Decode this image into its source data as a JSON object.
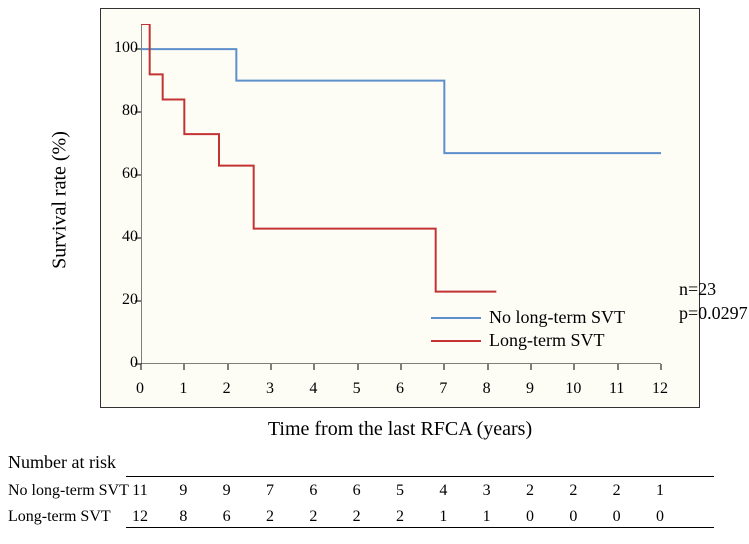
{
  "chart": {
    "type": "kaplan-meier",
    "background_color": "#fdfdf6",
    "border_color": "#333333",
    "xlabel": "Time from the last RFCA (years)",
    "ylabel": "Survival rate (%)",
    "label_fontsize": 20,
    "tick_fontsize": 16,
    "xlim": [
      0,
      12
    ],
    "ylim": [
      0,
      108
    ],
    "xticks": [
      0,
      1,
      2,
      3,
      4,
      5,
      6,
      7,
      8,
      9,
      10,
      11,
      12
    ],
    "yticks": [
      0,
      20,
      40,
      60,
      80,
      100
    ],
    "line_width": 2,
    "series": {
      "no_long_term": {
        "label": "No long-term SVT",
        "color": "#5e8fcb",
        "steps": [
          {
            "x": 0,
            "y": 100
          },
          {
            "x": 2.2,
            "y": 100
          },
          {
            "x": 2.2,
            "y": 90
          },
          {
            "x": 7.0,
            "y": 90
          },
          {
            "x": 7.0,
            "y": 67
          },
          {
            "x": 12.0,
            "y": 67
          }
        ],
        "risk": [
          11,
          9,
          9,
          7,
          6,
          6,
          5,
          4,
          3,
          2,
          2,
          2,
          1
        ]
      },
      "long_term": {
        "label": "Long-term SVT",
        "color": "#c33334",
        "steps": [
          {
            "x": 0,
            "y": 108
          },
          {
            "x": 0.2,
            "y": 108
          },
          {
            "x": 0.2,
            "y": 92
          },
          {
            "x": 0.5,
            "y": 92
          },
          {
            "x": 0.5,
            "y": 84
          },
          {
            "x": 1.0,
            "y": 84
          },
          {
            "x": 1.0,
            "y": 73
          },
          {
            "x": 1.8,
            "y": 73
          },
          {
            "x": 1.8,
            "y": 63
          },
          {
            "x": 2.6,
            "y": 63
          },
          {
            "x": 2.6,
            "y": 43
          },
          {
            "x": 6.8,
            "y": 43
          },
          {
            "x": 6.8,
            "y": 23
          },
          {
            "x": 8.2,
            "y": 23
          }
        ],
        "risk": [
          12,
          8,
          6,
          2,
          2,
          2,
          2,
          1,
          1,
          0,
          0,
          0,
          0
        ]
      }
    },
    "annotation": {
      "n_text": "n=23",
      "p_text": "p=0.0297",
      "fontsize": 18
    },
    "legend_fontsize": 18
  },
  "number_at_risk": {
    "title": "Number at risk",
    "rows": [
      {
        "label": "No long-term SVT"
      },
      {
        "label": "Long-term SVT"
      }
    ],
    "fontsize": 16
  }
}
